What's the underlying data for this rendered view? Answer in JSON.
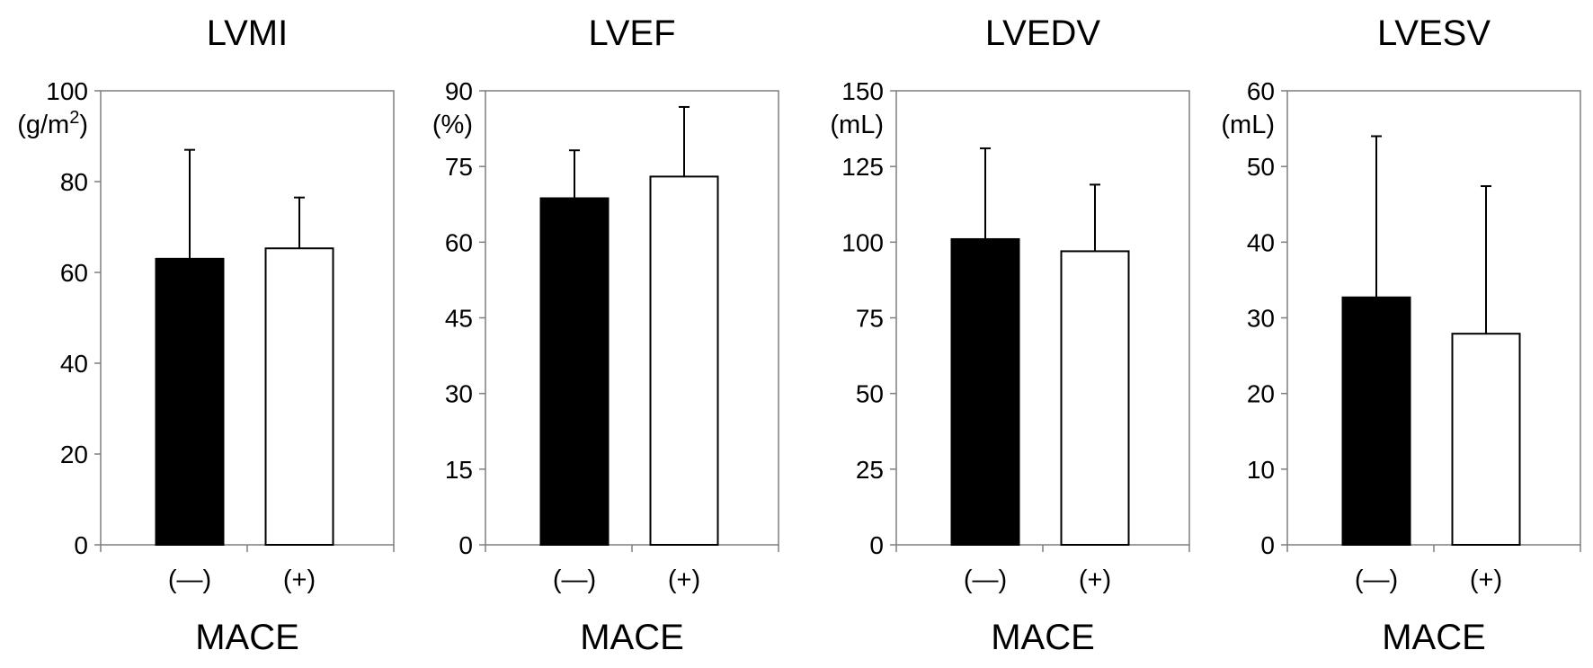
{
  "chart_data": [
    {
      "type": "bar",
      "title": "LVMI",
      "ylabel": "(g/m2)",
      "ylabel_superscript": "2",
      "xlabel": "MACE",
      "categories": [
        "(—)",
        "(+)"
      ],
      "values": [
        63,
        65.3
      ],
      "error_upper": [
        87,
        76.5
      ],
      "bar_colors": [
        "#000000",
        "#ffffff"
      ],
      "ylim": [
        0,
        100
      ],
      "yticks": [
        0,
        20,
        40,
        60,
        80,
        100
      ],
      "grid": false,
      "legend": "none"
    },
    {
      "type": "bar",
      "title": "LVEF",
      "ylabel": "(%)",
      "xlabel": "MACE",
      "categories": [
        "(—)",
        "(+)"
      ],
      "values": [
        68.7,
        73
      ],
      "error_upper": [
        78.2,
        86.8
      ],
      "bar_colors": [
        "#000000",
        "#ffffff"
      ],
      "ylim": [
        0,
        90
      ],
      "yticks": [
        0,
        15,
        30,
        45,
        60,
        75,
        90
      ],
      "grid": false,
      "legend": "none"
    },
    {
      "type": "bar",
      "title": "LVEDV",
      "ylabel": "(mL)",
      "xlabel": "MACE",
      "categories": [
        "(—)",
        "(+)"
      ],
      "values": [
        101,
        97
      ],
      "error_upper": [
        131,
        119
      ],
      "bar_colors": [
        "#000000",
        "#ffffff"
      ],
      "ylim": [
        0,
        150
      ],
      "yticks": [
        0,
        25,
        50,
        75,
        100,
        125,
        150
      ],
      "grid": false,
      "legend": "none"
    },
    {
      "type": "bar",
      "title": "LVESV",
      "ylabel": "(mL)",
      "xlabel": "MACE",
      "categories": [
        "(—)",
        "(+)"
      ],
      "values": [
        32.7,
        27.9
      ],
      "error_upper": [
        54,
        47.4
      ],
      "bar_colors": [
        "#000000",
        "#ffffff"
      ],
      "ylim": [
        0,
        60
      ],
      "yticks": [
        0,
        10,
        20,
        30,
        40,
        50,
        60
      ],
      "grid": false,
      "legend": "none"
    }
  ]
}
